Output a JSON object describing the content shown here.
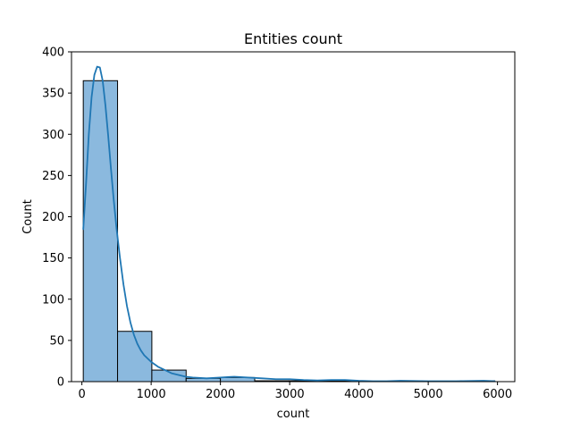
{
  "chart_data": {
    "type": "bar",
    "subtype": "histogram-with-kde",
    "title": "Entities count",
    "xlabel": "count",
    "ylabel": "Count",
    "xlim": [
      -150,
      6250
    ],
    "ylim": [
      0,
      400
    ],
    "x_ticks": [
      0,
      1000,
      2000,
      3000,
      4000,
      5000,
      6000
    ],
    "y_ticks": [
      0,
      50,
      100,
      150,
      200,
      250,
      300,
      350,
      400
    ],
    "bins": [
      {
        "start": 20,
        "end": 515,
        "count": 365
      },
      {
        "start": 515,
        "end": 1010,
        "count": 61
      },
      {
        "start": 1010,
        "end": 1505,
        "count": 14
      },
      {
        "start": 1505,
        "end": 2000,
        "count": 4
      },
      {
        "start": 2000,
        "end": 2495,
        "count": 5
      },
      {
        "start": 2495,
        "end": 2990,
        "count": 1
      },
      {
        "start": 2990,
        "end": 3485,
        "count": 1
      },
      {
        "start": 3485,
        "end": 3980,
        "count": 1
      },
      {
        "start": 3980,
        "end": 4475,
        "count": 0
      },
      {
        "start": 4475,
        "end": 4970,
        "count": 0
      },
      {
        "start": 4970,
        "end": 5465,
        "count": 0
      },
      {
        "start": 5465,
        "end": 5960,
        "count": 1
      }
    ],
    "kde": {
      "x": [
        20,
        60,
        100,
        140,
        180,
        220,
        260,
        300,
        340,
        380,
        420,
        460,
        500,
        550,
        600,
        650,
        700,
        750,
        800,
        850,
        900,
        1000,
        1100,
        1200,
        1300,
        1400,
        1500,
        1600,
        1800,
        2000,
        2200,
        2400,
        2600,
        2800,
        3000,
        3200,
        3400,
        3600,
        3800,
        4000,
        4200,
        4400,
        4600,
        4800,
        5000,
        5200,
        5400,
        5600,
        5800,
        5960
      ],
      "y": [
        185,
        240,
        300,
        345,
        372,
        382,
        381,
        365,
        335,
        298,
        258,
        220,
        186,
        150,
        118,
        92,
        72,
        57,
        46,
        38,
        32,
        24,
        18,
        14,
        10,
        8,
        6,
        5,
        4,
        5,
        6,
        5,
        4,
        3,
        3,
        2,
        1.5,
        2,
        2,
        1,
        0.5,
        0.5,
        1,
        0.8,
        0.5,
        0.5,
        0.5,
        0.8,
        1,
        0.5
      ]
    },
    "bar_fill": "#8bb9de",
    "bar_edge": "#000000",
    "kde_color": "#1f77b4",
    "grid": false,
    "legend": "none"
  }
}
